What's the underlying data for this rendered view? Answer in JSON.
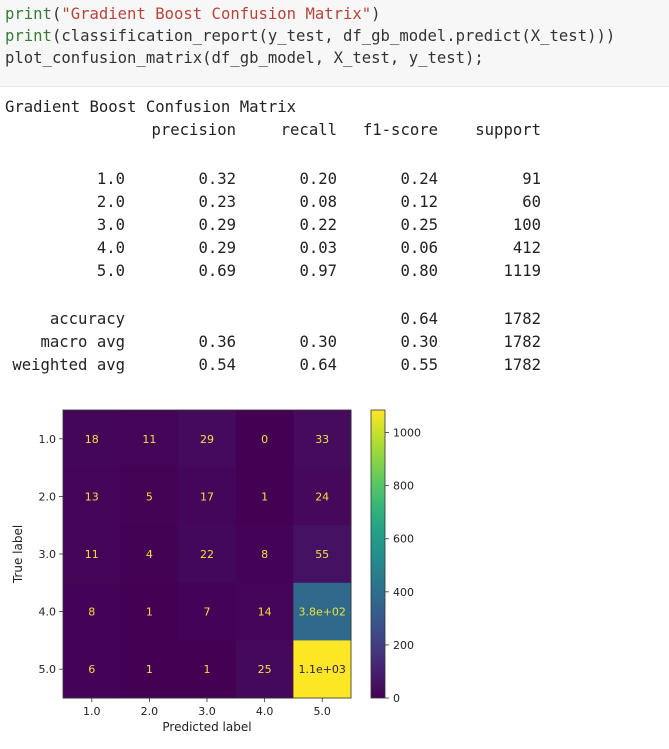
{
  "code": {
    "lines": [
      {
        "fn": "print",
        "open": "(",
        "str": "\"Gradient Boost Confusion Matrix\"",
        "close": ")"
      },
      {
        "fn": "print",
        "rest": "(classification_report(y_test, df_gb_model.predict(X_test)))"
      },
      {
        "fn": "",
        "rest": "plot_confusion_matrix(df_gb_model, X_test, y_test);"
      }
    ]
  },
  "report": {
    "title": "Gradient Boost Confusion Matrix",
    "headers": [
      "precision",
      "recall",
      "f1-score",
      "support"
    ],
    "class_rows": [
      {
        "label": "1.0",
        "precision": "0.32",
        "recall": "0.20",
        "f1": "0.24",
        "support": "91"
      },
      {
        "label": "2.0",
        "precision": "0.23",
        "recall": "0.08",
        "f1": "0.12",
        "support": "60"
      },
      {
        "label": "3.0",
        "precision": "0.29",
        "recall": "0.22",
        "f1": "0.25",
        "support": "100"
      },
      {
        "label": "4.0",
        "precision": "0.29",
        "recall": "0.03",
        "f1": "0.06",
        "support": "412"
      },
      {
        "label": "5.0",
        "precision": "0.69",
        "recall": "0.97",
        "f1": "0.80",
        "support": "1119"
      }
    ],
    "summary_rows": [
      {
        "label": "accuracy",
        "precision": "",
        "recall": "",
        "f1": "0.64",
        "support": "1782"
      },
      {
        "label": "macro avg",
        "precision": "0.36",
        "recall": "0.30",
        "f1": "0.30",
        "support": "1782"
      },
      {
        "label": "weighted avg",
        "precision": "0.54",
        "recall": "0.64",
        "f1": "0.55",
        "support": "1782"
      }
    ]
  },
  "colors": {
    "code_bg": "#f7f7f7",
    "fn_color": "#3a7a3a",
    "string_color": "#b8443a"
  },
  "chart_data": {
    "type": "heatmap",
    "title": "",
    "xlabel": "Predicted label",
    "ylabel": "True label",
    "x_categories": [
      "1.0",
      "2.0",
      "3.0",
      "4.0",
      "5.0"
    ],
    "y_categories": [
      "1.0",
      "2.0",
      "3.0",
      "4.0",
      "5.0"
    ],
    "values": [
      [
        18,
        11,
        29,
        0,
        33
      ],
      [
        13,
        5,
        17,
        1,
        24
      ],
      [
        11,
        4,
        22,
        8,
        55
      ],
      [
        8,
        1,
        7,
        14,
        380
      ],
      [
        6,
        1,
        1,
        25,
        1100
      ]
    ],
    "cell_labels": [
      [
        "18",
        "11",
        "29",
        "0",
        "33"
      ],
      [
        "13",
        "5",
        "17",
        "1",
        "24"
      ],
      [
        "11",
        "4",
        "22",
        "8",
        "55"
      ],
      [
        "8",
        "1",
        "7",
        "14",
        "3.8e+02"
      ],
      [
        "6",
        "1",
        "1",
        "25",
        "1.1e+03"
      ]
    ],
    "colormap": "viridis",
    "colorbar": {
      "range": [
        0,
        1085
      ],
      "ticks": [
        0,
        200,
        400,
        600,
        800,
        1000
      ],
      "tick_labels": [
        "0",
        "200",
        "400",
        "600",
        "800",
        "1000"
      ]
    },
    "grid": false
  }
}
